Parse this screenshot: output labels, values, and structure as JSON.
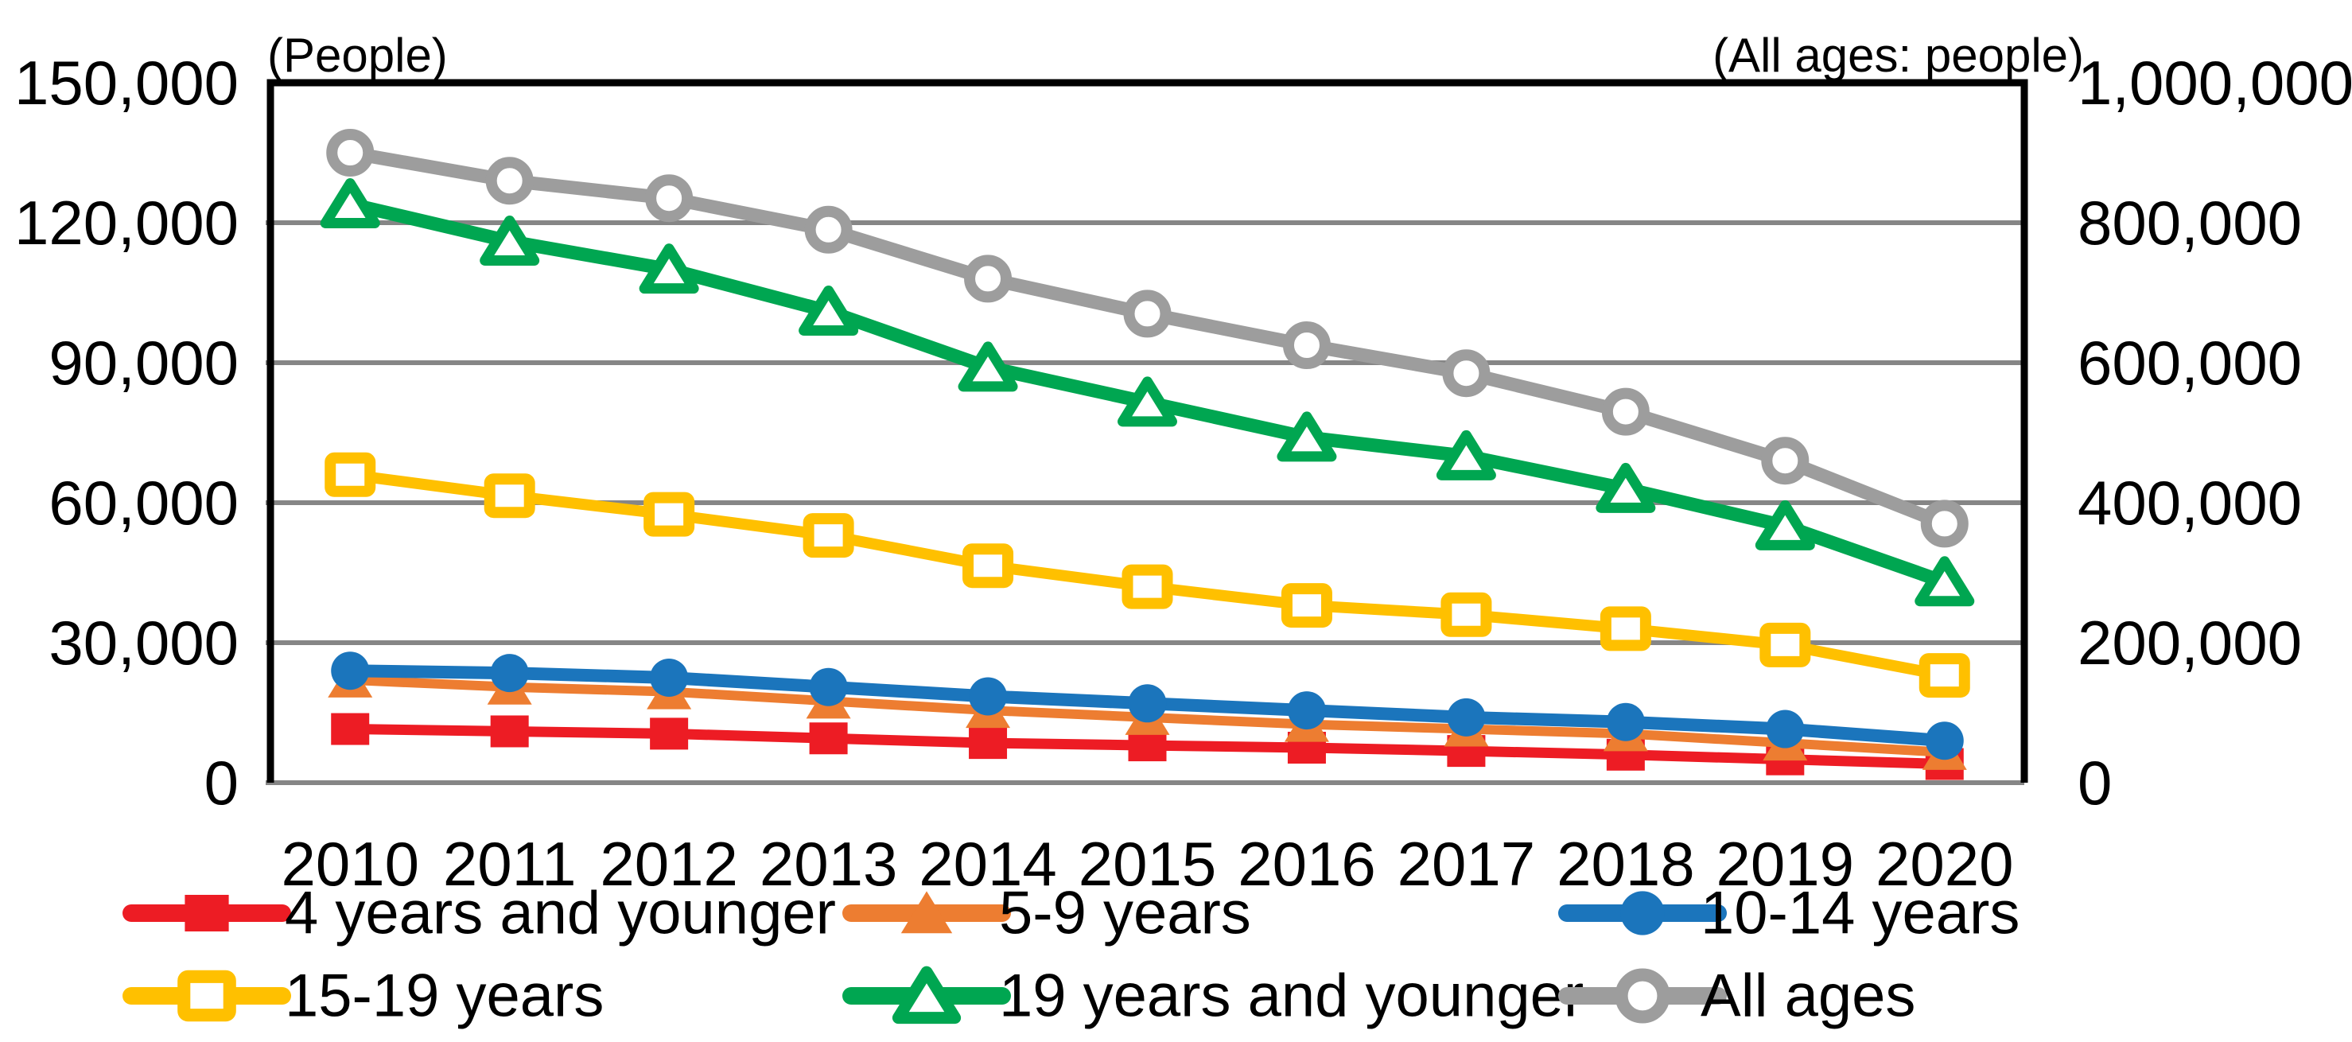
{
  "page": {
    "background": "#ffffff"
  },
  "chart_data": {
    "type": "line",
    "title": "",
    "x": [
      2010,
      2011,
      2012,
      2013,
      2014,
      2015,
      2016,
      2017,
      2018,
      2019,
      2020
    ],
    "x_axis_labels": [
      "2010",
      "2011",
      "2012",
      "2013",
      "2014",
      "2015",
      "2016",
      "2017",
      "2018",
      "2019",
      "2020"
    ],
    "left_axis": {
      "title": "(People)",
      "range": [
        0,
        150000
      ],
      "tick_step": 30000,
      "tick_labels": [
        "150,000",
        "120,000",
        "90,000",
        "60,000",
        "30,000",
        "0"
      ]
    },
    "right_axis": {
      "title": "(All ages: people)",
      "range": [
        0,
        1000000
      ],
      "tick_step": 200000,
      "tick_labels": [
        "1,000,000",
        "800,000",
        "600,000",
        "400,000",
        "200,000",
        "0"
      ]
    },
    "grid": true,
    "legend_position": "bottom",
    "series": [
      {
        "name": "4 years and younger",
        "axis": "left",
        "color": "#ed1c24",
        "marker": "filled-square",
        "values": [
          11500,
          11000,
          10500,
          9500,
          8500,
          8000,
          7500,
          6800,
          6000,
          5000,
          4000
        ]
      },
      {
        "name": "5-9 years",
        "axis": "left",
        "color": "#ed7d31",
        "marker": "filled-triangle",
        "values": [
          22000,
          20500,
          19500,
          17500,
          15500,
          14000,
          12500,
          11500,
          10500,
          8500,
          6500
        ]
      },
      {
        "name": "10-14 years",
        "axis": "left",
        "color": "#1b75bc",
        "marker": "filled-circle",
        "values": [
          24000,
          23500,
          22500,
          20500,
          18500,
          17000,
          15500,
          14000,
          13000,
          11500,
          9000
        ]
      },
      {
        "name": "15-19 years",
        "axis": "left",
        "color": "#ffc000",
        "marker": "open-square",
        "values": [
          66000,
          61500,
          57500,
          53000,
          46500,
          42000,
          38000,
          36000,
          33000,
          29500,
          23000
        ]
      },
      {
        "name": "19 years and younger",
        "axis": "left",
        "color": "#00a651",
        "marker": "open-triangle",
        "values": [
          124000,
          116000,
          110000,
          101000,
          89000,
          81500,
          74000,
          70000,
          63000,
          55000,
          43000
        ]
      },
      {
        "name": "All ages",
        "axis": "right",
        "color": "#9d9d9d",
        "marker": "open-circle",
        "values": [
          900000,
          860000,
          835000,
          790000,
          720000,
          670000,
          625000,
          585000,
          530000,
          460000,
          370000
        ]
      }
    ]
  },
  "legend": {
    "items": [
      {
        "label": "4 years and younger",
        "series_index": 0
      },
      {
        "label": "5-9 years",
        "series_index": 1
      },
      {
        "label": "10-14 years",
        "series_index": 2
      },
      {
        "label": "15-19 years",
        "series_index": 3
      },
      {
        "label": "19 years and younger",
        "series_index": 4
      },
      {
        "label": "All ages",
        "series_index": 5
      }
    ]
  },
  "colors": {
    "gridline": "#868686",
    "axis_border": "#000000",
    "text": "#000000",
    "background": "#ffffff"
  }
}
